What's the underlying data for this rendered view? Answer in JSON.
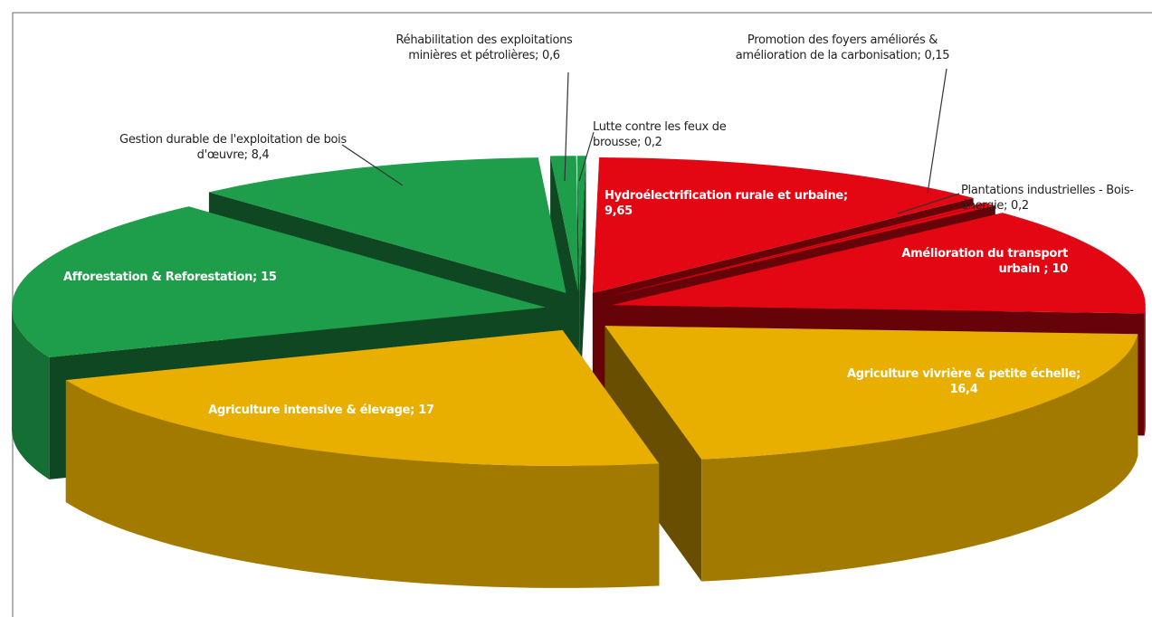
{
  "chart_data": {
    "type": "pie3d",
    "categories": [
      "Réhabilitation des exploitations minières et pétrolières;",
      "Lutte contre les feux de brousse;",
      "Hydroélectrification rurale et urbaine;",
      "Promotion des foyers améliorés & amélioration de la carbonisation;",
      "Plantations industrielles - Bois-énergie;",
      "Amélioration du  transport urbain ;",
      "Agriculture vivrière & petite échelle;",
      "Agriculture intensive & élevage;",
      "Afforestation & Reforestation;",
      "Gestion durable de l'exploitation de bois d'œuvre;"
    ],
    "values": [
      0.6,
      0.2,
      9.65,
      0.15,
      0.2,
      10,
      16.4,
      17,
      15,
      8.4
    ],
    "value_labels": [
      "0,6",
      "0,2",
      "9,65",
      "0,15",
      "0,2",
      "10",
      "16,4",
      "17",
      "15",
      "8,4"
    ],
    "colors": [
      "#1e9e4a",
      "#1e9e4a",
      "#e30613",
      "#e30613",
      "#e30613",
      "#e30613",
      "#e8ae00",
      "#e8ae00",
      "#1e9e4a",
      "#1e9e4a"
    ]
  }
}
